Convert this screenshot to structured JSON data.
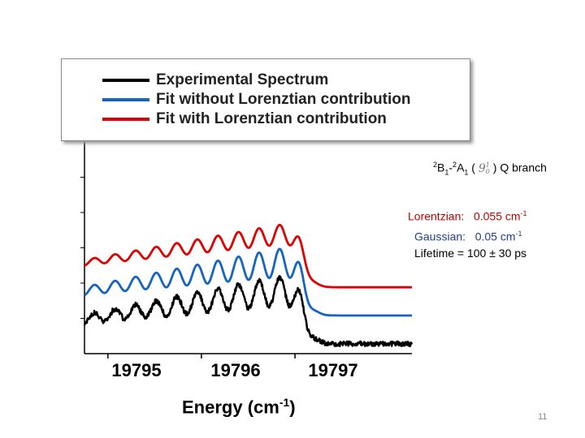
{
  "chart_data": {
    "type": "line",
    "title": "",
    "xlabel": "Energy (cm-1)",
    "xlabel_main": "Energy (cm",
    "xlabel_sup": "-1",
    "xlabel_close": ")",
    "ylabel": "",
    "xlim": [
      19794.75,
      19798.25
    ],
    "ylim": [
      0,
      1.5
    ],
    "xticks": [
      "19795",
      "19796",
      "19797"
    ],
    "grid": false,
    "legend_position": "top",
    "series": [
      {
        "name": "Experimental Spectrum",
        "color": "#000000",
        "offset": 0.0,
        "smooth": 1.0
      },
      {
        "name": "Fit without Lorenztian contribution",
        "color": "#1565c0",
        "offset": 0.2,
        "smooth": 0.75
      },
      {
        "name": "Fit with Lorenztian contribution",
        "color": "#e00000",
        "offset": 0.4,
        "smooth": 0.45
      }
    ]
  },
  "annotations": {
    "branch_prefix": "2",
    "branch_B": "B",
    "branch_sub1": "1",
    "branch_dash": "-",
    "branch_pre2": "2",
    "branch_A": "A",
    "branch_sub2": "1",
    "branch_open": " (",
    "branch_vib": "9",
    "branch_vib_sup": "1",
    "branch_vib_sub": "0",
    "branch_close": ") Q branch",
    "lorentzian_label": "Lorentzian:",
    "lorentzian_value": "0.055 cm",
    "gaussian_label": "Gaussian:",
    "gaussian_value": "0.05 cm",
    "unit_sup": "-1",
    "lifetime": "Lifetime = 100 ± 30 ps"
  },
  "slide_number": "11"
}
